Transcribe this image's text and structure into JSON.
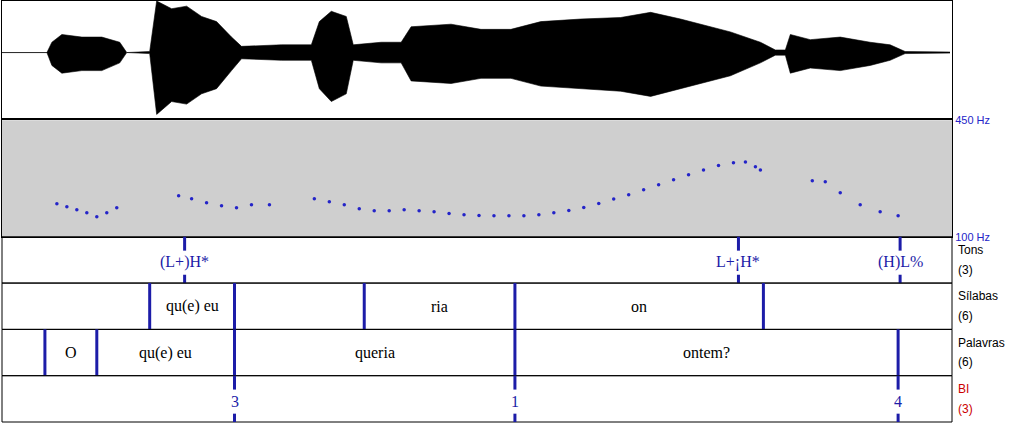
{
  "chart_data": [
    {
      "type": "area",
      "x": [
        0,
        0.09,
        0.1,
        0.12,
        0.16,
        0.2,
        0.236,
        0.25,
        0.296,
        0.31,
        0.34,
        0.37,
        0.4,
        0.43,
        0.46,
        0.48,
        0.56,
        0.62,
        0.636,
        0.66,
        0.69,
        0.704,
        0.76,
        0.8,
        0.82,
        0.9,
        0.96,
        1.02,
        1.08,
        1.16,
        1.24,
        1.3,
        1.36,
        1.42,
        1.46,
        1.52,
        1.55,
        1.57,
        1.58,
        1.62,
        1.68,
        1.74,
        1.78,
        1.81,
        1.9
      ],
      "values": [
        0,
        0,
        0.2,
        0.35,
        0.3,
        0.3,
        0.2,
        0,
        0.02,
        1.0,
        0.85,
        0.9,
        0.7,
        0.6,
        0.3,
        0.12,
        0.15,
        0.15,
        0.6,
        0.8,
        0.7,
        0.15,
        0.2,
        0.2,
        0.5,
        0.55,
        0.45,
        0.45,
        0.6,
        0.65,
        0.68,
        0.78,
        0.65,
        0.5,
        0.4,
        0.2,
        0.05,
        0.05,
        0.35,
        0.25,
        0.3,
        0.2,
        0.15,
        0.02,
        0.01
      ],
      "values_low": [
        0,
        0,
        -0.25,
        -0.4,
        -0.35,
        -0.35,
        -0.2,
        0,
        -0.02,
        -1.2,
        -0.95,
        -1.0,
        -0.8,
        -0.7,
        -0.35,
        -0.12,
        -0.15,
        -0.15,
        -0.7,
        -0.95,
        -0.8,
        -0.15,
        -0.2,
        -0.2,
        -0.55,
        -0.6,
        -0.5,
        -0.5,
        -0.65,
        -0.7,
        -0.75,
        -0.85,
        -0.7,
        -0.55,
        -0.45,
        -0.2,
        -0.05,
        -0.05,
        -0.4,
        -0.3,
        -0.35,
        -0.25,
        -0.15,
        -0.02,
        -0.01
      ],
      "xlim": [
        0,
        1.904
      ],
      "ylim": [
        -1.27,
        1
      ],
      "color": "#000000",
      "tick_labels": false
    },
    {
      "type": "scatter",
      "x": [
        0.11,
        0.13,
        0.15,
        0.17,
        0.19,
        0.21,
        0.23,
        0.3,
        0.354,
        0.38,
        0.41,
        0.44,
        0.47,
        0.5,
        0.536,
        0.58,
        0.626,
        0.656,
        0.686,
        0.716,
        0.746,
        0.776,
        0.806,
        0.836,
        0.866,
        0.896,
        0.926,
        0.956,
        0.986,
        1.016,
        1.046,
        1.076,
        1.106,
        1.136,
        1.166,
        1.196,
        1.226,
        1.256,
        1.286,
        1.316,
        1.346,
        1.376,
        1.406,
        1.436,
        1.466,
        1.49,
        1.51,
        1.52,
        1.57,
        1.624,
        1.65,
        1.68,
        1.72,
        1.76,
        1.796
      ],
      "values": [
        199,
        190,
        181,
        172,
        160,
        172,
        187,
        null,
        223,
        214,
        202,
        193,
        187,
        196,
        196,
        null,
        214,
        205,
        196,
        184,
        178,
        178,
        181,
        178,
        175,
        170,
        166,
        164,
        163,
        163,
        163,
        166,
        172,
        179,
        188,
        200,
        213,
        226,
        241,
        256,
        271,
        286,
        300,
        314,
        322,
        324,
        310,
        300,
        null,
        268,
        265,
        232,
        196,
        175,
        163
      ],
      "xlim": [
        0,
        1.904
      ],
      "ylim": [
        100,
        450
      ],
      "yticks": [
        {
          "value": 100,
          "label": "100 Hz"
        },
        {
          "value": 450,
          "label": "450 Hz"
        }
      ],
      "color": "#2424c8",
      "marker": "dot",
      "tick_labels": "y"
    }
  ],
  "tiers": [
    {
      "name": "Tons",
      "count_label": "(3)",
      "kind": "point",
      "points": [
        {
          "time": 0.366,
          "text": "(L+)H*"
        },
        {
          "time": 1.476,
          "text": "L+¡H*"
        },
        {
          "time": 1.8,
          "text": "(H)L%"
        }
      ]
    },
    {
      "name": "Sílabas",
      "count_label": "(6)",
      "kind": "interval",
      "boundaries": [
        0.296,
        0.466,
        0.726,
        1.028,
        1.526
      ],
      "intervals": [
        {
          "start": 0.296,
          "end": 0.466,
          "text": "qu(e) eu"
        },
        {
          "start": 0.726,
          "end": 1.028,
          "text": "ria"
        },
        {
          "start": 1.028,
          "end": 1.526,
          "text": "on"
        }
      ]
    },
    {
      "name": "Palavras",
      "count_label": "(6)",
      "kind": "interval",
      "boundaries": [
        0.086,
        0.19,
        0.466,
        1.028,
        1.796
      ],
      "intervals": [
        {
          "start": 0.086,
          "end": 0.19,
          "text": "O"
        },
        {
          "start": 0.19,
          "end": 0.466,
          "text": "qu(e) eu"
        },
        {
          "start": 0.466,
          "end": 1.028,
          "text": "queria"
        },
        {
          "start": 1.028,
          "end": 1.796,
          "text": "ontem?"
        }
      ]
    },
    {
      "name": "BI",
      "count_label": "(3)",
      "kind": "point",
      "color": "#cc0000",
      "points": [
        {
          "time": 0.466,
          "text": "3"
        },
        {
          "time": 1.028,
          "text": "1"
        },
        {
          "time": 1.796,
          "text": "4"
        }
      ]
    }
  ]
}
